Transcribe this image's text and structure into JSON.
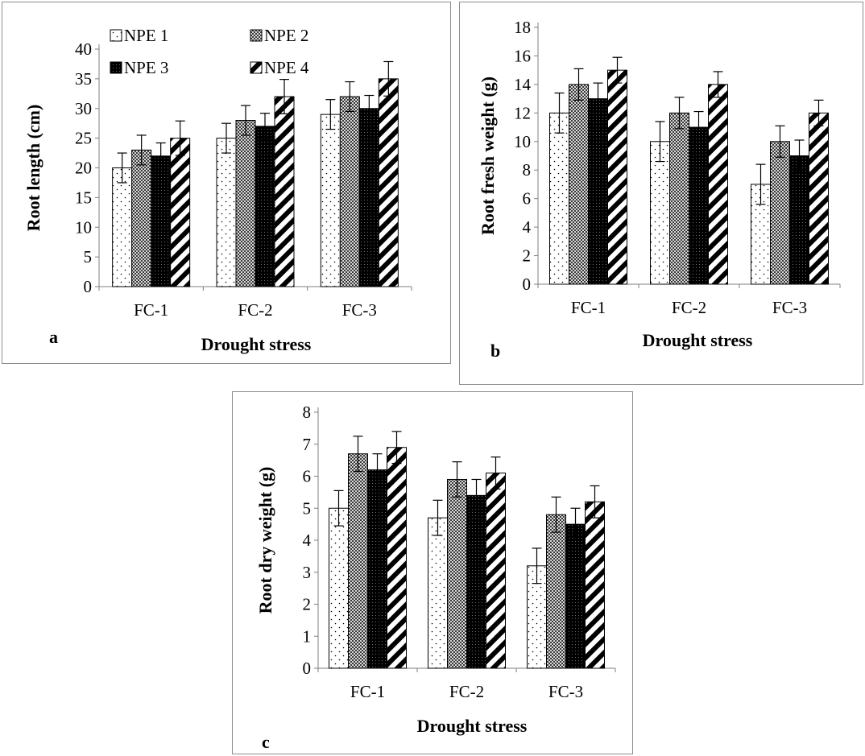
{
  "chart_data": [
    {
      "panel_letter": "a",
      "type": "bar",
      "categories": [
        "FC-1",
        "FC-2",
        "FC-3"
      ],
      "series": [
        {
          "name": "NPE 1",
          "pattern": "dots",
          "values": [
            20,
            25,
            29
          ],
          "errors": [
            2.5,
            2.5,
            2.5
          ]
        },
        {
          "name": "NPE 2",
          "pattern": "checker",
          "values": [
            23,
            28,
            32
          ],
          "errors": [
            2.5,
            2.5,
            2.5
          ]
        },
        {
          "name": "NPE 3",
          "pattern": "dark-grid",
          "values": [
            22,
            27,
            30
          ],
          "errors": [
            2.2,
            2.2,
            2.2
          ]
        },
        {
          "name": "NPE 4",
          "pattern": "diagonal",
          "values": [
            25,
            32,
            35
          ],
          "errors": [
            2.9,
            2.9,
            2.9
          ]
        }
      ],
      "xlabel": "Drought stress",
      "ylabel": "Root length (cm)",
      "ylim": [
        0,
        40
      ],
      "ytick_step": 5,
      "legend": "top, 2 columns",
      "grid": false
    },
    {
      "panel_letter": "b",
      "type": "bar",
      "categories": [
        "FC-1",
        "FC-2",
        "FC-3"
      ],
      "series": [
        {
          "name": "NPE 1",
          "pattern": "dots",
          "values": [
            12,
            10,
            7
          ],
          "errors": [
            1.4,
            1.4,
            1.4
          ]
        },
        {
          "name": "NPE 2",
          "pattern": "checker",
          "values": [
            14,
            12,
            10
          ],
          "errors": [
            1.1,
            1.1,
            1.1
          ]
        },
        {
          "name": "NPE 3",
          "pattern": "dark-grid",
          "values": [
            13,
            11,
            9
          ],
          "errors": [
            1.1,
            1.1,
            1.1
          ]
        },
        {
          "name": "NPE 4",
          "pattern": "diagonal",
          "values": [
            15,
            14,
            12
          ],
          "errors": [
            0.9,
            0.9,
            0.9
          ]
        }
      ],
      "xlabel": "Drought stress",
      "ylabel": "Root fresh weight (g)",
      "ylim": [
        0,
        18
      ],
      "ytick_step": 2,
      "grid": false
    },
    {
      "panel_letter": "c",
      "type": "bar",
      "categories": [
        "FC-1",
        "FC-2",
        "FC-3"
      ],
      "series": [
        {
          "name": "NPE 1",
          "pattern": "dots",
          "values": [
            5,
            4.7,
            3.2
          ],
          "errors": [
            0.55,
            0.55,
            0.55
          ]
        },
        {
          "name": "NPE 2",
          "pattern": "checker",
          "values": [
            6.7,
            5.9,
            4.8
          ],
          "errors": [
            0.55,
            0.55,
            0.55
          ]
        },
        {
          "name": "NPE 3",
          "pattern": "dark-grid",
          "values": [
            6.2,
            5.4,
            4.5
          ],
          "errors": [
            0.5,
            0.5,
            0.5
          ]
        },
        {
          "name": "NPE 4",
          "pattern": "diagonal",
          "values": [
            6.9,
            6.1,
            5.2
          ],
          "errors": [
            0.5,
            0.5,
            0.5
          ]
        }
      ],
      "xlabel": "Drought stress",
      "ylabel": "Root dry weight (g)",
      "ylim": [
        0,
        8
      ],
      "ytick_step": 1,
      "grid": false
    }
  ]
}
